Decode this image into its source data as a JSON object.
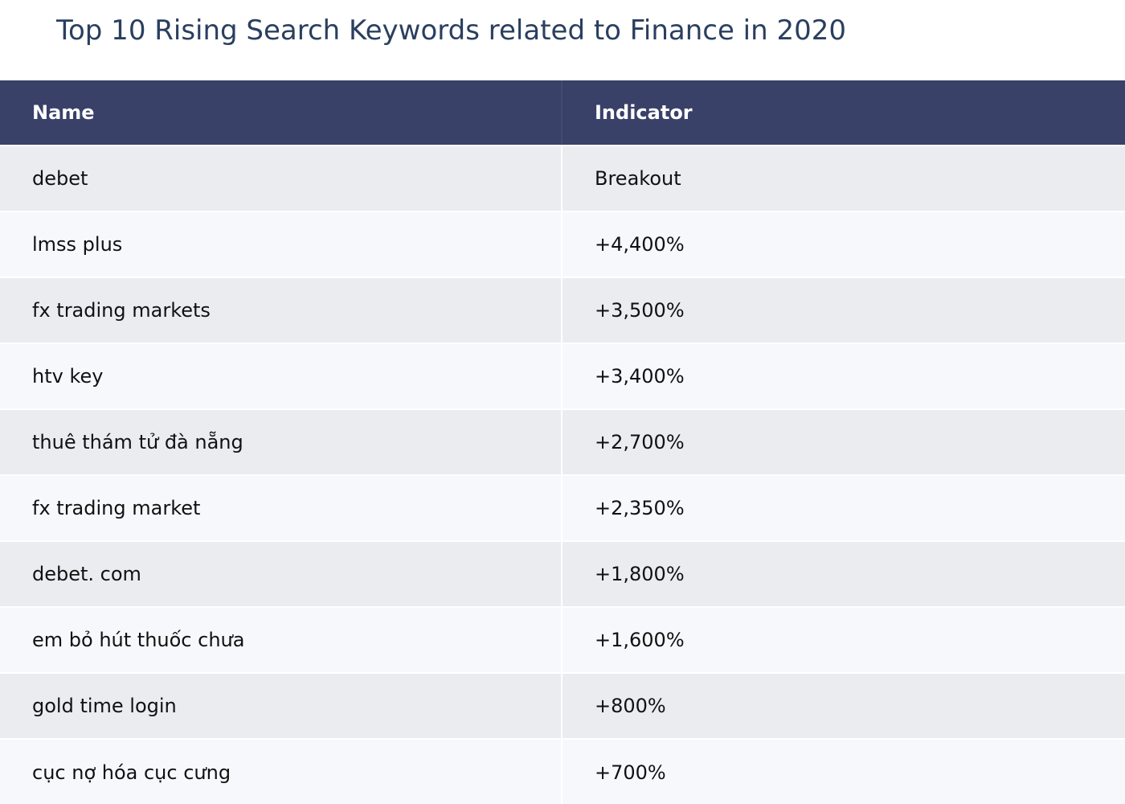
{
  "chart_data": {
    "type": "table",
    "title": "Top 10 Rising Search Keywords related to Finance in 2020",
    "columns": [
      "Name",
      "Indicator"
    ],
    "rows": [
      {
        "name": "debet",
        "indicator": "Breakout"
      },
      {
        "name": "lmss plus",
        "indicator": "+4,400%"
      },
      {
        "name": "fx trading markets",
        "indicator": "+3,500%"
      },
      {
        "name": "htv key",
        "indicator": "+3,400%"
      },
      {
        "name": "thuê thám tử đà nẵng",
        "indicator": "+2,700%"
      },
      {
        "name": "fx trading market",
        "indicator": "+2,350%"
      },
      {
        "name": "debet. com",
        "indicator": "+1,800%"
      },
      {
        "name": "em bỏ hút thuốc chưa",
        "indicator": "+1,600%"
      },
      {
        "name": "gold time login",
        "indicator": "+800%"
      },
      {
        "name": "cục nợ hóa cục cưng",
        "indicator": "+700%"
      }
    ],
    "colors": {
      "header_bg": "#394168",
      "header_text": "#ffffff",
      "row_odd_bg": "#ebecf0",
      "row_even_bg": "#f7f8fc",
      "title_text": "#2a3f5f"
    }
  }
}
